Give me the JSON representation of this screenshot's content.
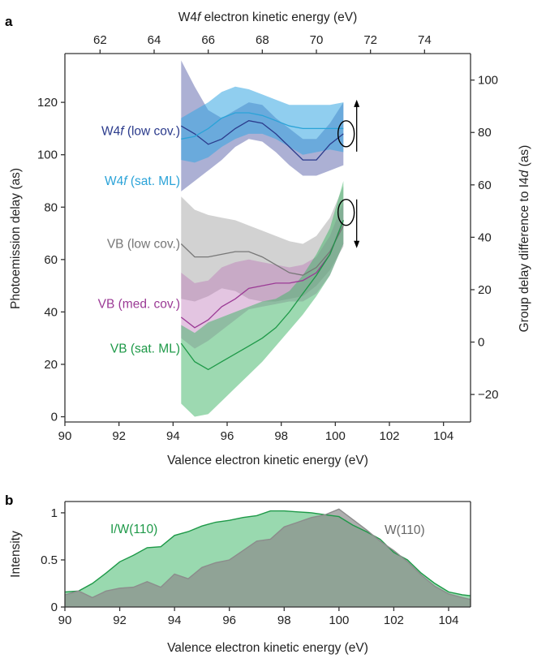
{
  "figure": {
    "panel_a_label": "a",
    "panel_b_label": "b"
  },
  "chart_data": [
    {
      "type": "line",
      "panel": "a",
      "xlabel": "Valence electron kinetic energy (eV)",
      "x2label_parts": [
        "W4",
        "f",
        " electron kinetic energy (eV)"
      ],
      "ylabel": "Photoemission delay (as)",
      "y2label_parts": [
        "Group delay difference to I4",
        "d",
        " (as)"
      ],
      "xlim": [
        90,
        105
      ],
      "ylim": [
        -2,
        138
      ],
      "x_ticks": [
        90,
        92,
        94,
        96,
        98,
        100,
        102,
        104
      ],
      "y_ticks": [
        0,
        20,
        40,
        60,
        80,
        100,
        120
      ],
      "x2_ticks": [
        62,
        64,
        66,
        68,
        70,
        72,
        74
      ],
      "x2_offset": 29.3,
      "y2_ticks": [
        -20,
        0,
        20,
        40,
        60,
        80,
        100
      ],
      "y2_offset": 28.5,
      "series": [
        {
          "name": "W4f (low cov.)",
          "name_parts": [
            "W4",
            "f",
            " (low cov.)"
          ],
          "color": "#2b3b8c",
          "band_color": "rgba(70,80,160,0.45)",
          "x": [
            94.3,
            94.8,
            95.3,
            95.8,
            96.3,
            96.8,
            97.3,
            97.8,
            98.3,
            98.8,
            99.3,
            99.8,
            100.3
          ],
          "y": [
            111,
            108,
            104,
            106,
            110,
            113,
            112,
            108,
            103,
            98,
            98,
            104,
            108
          ],
          "lower": [
            86,
            90,
            94,
            98,
            103,
            106,
            105,
            101,
            96,
            92,
            92,
            94,
            96
          ],
          "upper": [
            136,
            126,
            117,
            114,
            117,
            120,
            119,
            114,
            110,
            106,
            106,
            112,
            120
          ]
        },
        {
          "name": "W4f (sat. ML)",
          "name_parts": [
            "W4",
            "f",
            " (sat. ML)"
          ],
          "color": "#2ba3d8",
          "band_color": "rgba(52,165,225,0.55)",
          "x": [
            94.3,
            94.8,
            95.3,
            95.8,
            96.3,
            96.8,
            97.3,
            97.8,
            98.3,
            98.8,
            99.3,
            99.8,
            100.3
          ],
          "y": [
            106,
            107,
            110,
            114,
            116,
            116,
            115,
            113,
            111,
            110,
            110,
            110,
            110
          ],
          "lower": [
            98,
            97,
            99,
            103,
            106,
            108,
            108,
            106,
            103,
            100,
            101,
            102,
            101
          ],
          "upper": [
            114,
            117,
            120,
            124,
            126,
            125,
            123,
            121,
            119,
            119,
            119,
            119,
            120
          ]
        },
        {
          "name": "VB (low cov.)",
          "name_parts": [
            "VB (low cov.)"
          ],
          "color": "#777777",
          "band_color": "rgba(165,165,165,0.5)",
          "x": [
            94.3,
            94.8,
            95.3,
            95.8,
            96.3,
            96.8,
            97.3,
            97.8,
            98.3,
            98.8,
            99.3,
            99.8,
            100.3
          ],
          "y": [
            66,
            61,
            61,
            62,
            63,
            63,
            61,
            58,
            55,
            54,
            57,
            63,
            73
          ],
          "lower": [
            45,
            44,
            46,
            49,
            48,
            45,
            44,
            44,
            45,
            46,
            50,
            56,
            65
          ],
          "upper": [
            84,
            79,
            77,
            76,
            75,
            73,
            71,
            69,
            67,
            66,
            69,
            76,
            88
          ]
        },
        {
          "name": "VB (med. cov.)",
          "name_parts": [
            "VB (med. cov.)"
          ],
          "color": "#9b3a95",
          "band_color": "rgba(185,110,180,0.4)",
          "x": [
            94.3,
            94.8,
            95.3,
            95.8,
            96.3,
            96.8,
            97.3,
            97.8,
            98.3,
            98.8,
            99.3,
            99.8,
            100.3
          ],
          "y": [
            38,
            34,
            37,
            42,
            45,
            49,
            50,
            51,
            51,
            52,
            55,
            62,
            75
          ],
          "lower": [
            30,
            26,
            29,
            33,
            37,
            41,
            42,
            43,
            44,
            44,
            47,
            54,
            66
          ],
          "upper": [
            55,
            51,
            52,
            57,
            59,
            60,
            59,
            58,
            57,
            58,
            61,
            69,
            82
          ]
        },
        {
          "name": "VB (sat. ML)",
          "name_parts": [
            "VB (sat. ML)"
          ],
          "color": "#1e9948",
          "band_color": "rgba(60,180,100,0.5)",
          "x": [
            94.3,
            94.8,
            95.3,
            95.8,
            96.3,
            96.8,
            97.3,
            97.8,
            98.3,
            98.8,
            99.3,
            99.8,
            100.3
          ],
          "y": [
            28,
            21,
            18,
            21,
            24,
            27,
            30,
            34,
            40,
            47,
            54,
            62,
            75
          ],
          "lower": [
            5,
            0,
            1,
            6,
            11,
            16,
            21,
            27,
            33,
            39,
            46,
            54,
            66
          ],
          "upper": [
            35,
            32,
            36,
            38,
            40,
            42,
            44,
            45,
            48,
            54,
            62,
            72,
            90
          ]
        }
      ],
      "annotations": {
        "w4f_marker": {
          "x": 100.4,
          "y": 108,
          "arrow": "up"
        },
        "vb_marker": {
          "x": 100.4,
          "y": 78,
          "arrow": "down"
        }
      }
    },
    {
      "type": "area",
      "panel": "b",
      "xlabel": "Valence electron kinetic energy (eV)",
      "ylabel": "Intensity",
      "xlim": [
        90,
        104.8
      ],
      "ylim": [
        0,
        1.12
      ],
      "x_ticks": [
        90,
        92,
        94,
        96,
        98,
        100,
        102,
        104
      ],
      "y_ticks": [
        0,
        0.5,
        1
      ],
      "y_tick_labels": [
        "0",
        "0.5",
        "1"
      ],
      "series": [
        {
          "name": "I/W(110)",
          "color": "#1e9948",
          "fill": "rgba(70,185,110,0.55)",
          "x": [
            90,
            90.5,
            91,
            91.5,
            92,
            92.5,
            93,
            93.5,
            94,
            94.5,
            95,
            95.5,
            96,
            96.5,
            97,
            97.5,
            98,
            98.5,
            99,
            99.5,
            100,
            100.5,
            101,
            101.5,
            102,
            102.5,
            103,
            103.5,
            104,
            104.5,
            104.8
          ],
          "y": [
            0.16,
            0.17,
            0.25,
            0.36,
            0.48,
            0.55,
            0.63,
            0.64,
            0.76,
            0.8,
            0.86,
            0.9,
            0.92,
            0.95,
            0.97,
            1.02,
            1.02,
            1.01,
            1.0,
            0.98,
            0.96,
            0.87,
            0.8,
            0.72,
            0.58,
            0.5,
            0.36,
            0.25,
            0.16,
            0.13,
            0.12
          ]
        },
        {
          "name": "W(110)",
          "color": "#8c8c8c",
          "fill": "rgba(140,140,140,0.7)",
          "x": [
            90,
            90.5,
            91,
            91.5,
            92,
            92.5,
            93,
            93.5,
            94,
            94.5,
            95,
            95.5,
            96,
            96.5,
            97,
            97.5,
            98,
            98.5,
            99,
            99.5,
            100,
            100.5,
            101,
            101.5,
            102,
            102.5,
            103,
            103.5,
            104,
            104.5,
            104.8
          ],
          "y": [
            0.13,
            0.17,
            0.1,
            0.17,
            0.2,
            0.21,
            0.27,
            0.21,
            0.35,
            0.3,
            0.42,
            0.47,
            0.5,
            0.6,
            0.7,
            0.72,
            0.85,
            0.9,
            0.95,
            0.98,
            1.04,
            0.93,
            0.82,
            0.7,
            0.6,
            0.48,
            0.34,
            0.22,
            0.14,
            0.1,
            0.08
          ]
        }
      ]
    }
  ]
}
